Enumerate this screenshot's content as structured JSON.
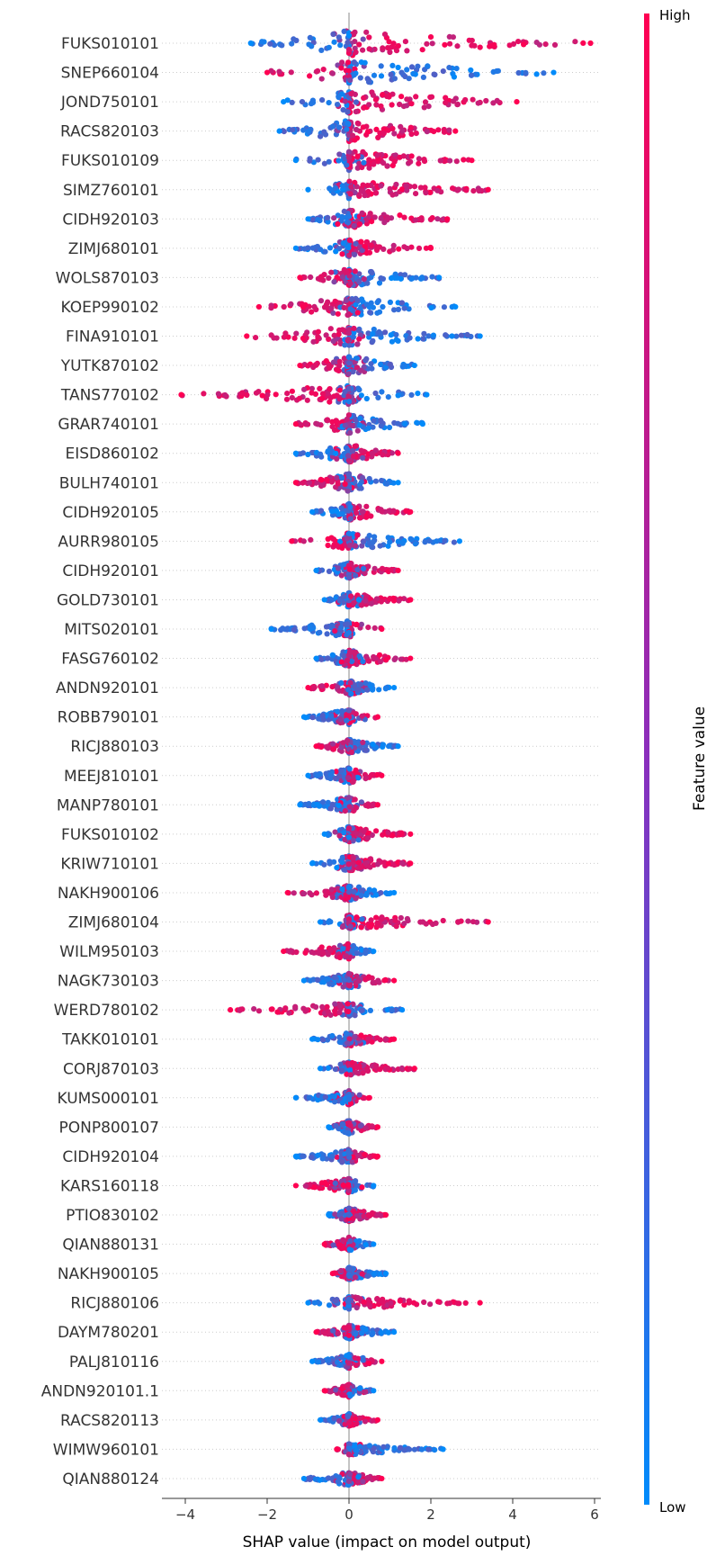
{
  "chart_data": {
    "type": "scatter",
    "subtype": "shap-beeswarm",
    "xlabel": "SHAP value (impact on model output)",
    "xticks": [
      -4,
      -2,
      0,
      2,
      4,
      6
    ],
    "xlim": [
      -4.6,
      6.4
    ],
    "colorbar": {
      "label": "Feature value",
      "high": "High",
      "low": "Low",
      "high_color": "#ff0052",
      "low_color": "#008bfb"
    },
    "zero_line": true,
    "features": [
      {
        "name": "FUKS010101",
        "min": -2.4,
        "max": 5.9,
        "high_side": "right",
        "width": 1.0
      },
      {
        "name": "SNEP660104",
        "min": -2.0,
        "max": 5.0,
        "high_side": "left",
        "width": 0.9
      },
      {
        "name": "JOND750101",
        "min": -1.6,
        "max": 4.1,
        "high_side": "right",
        "width": 0.9
      },
      {
        "name": "RACS820103",
        "min": -1.7,
        "max": 2.6,
        "high_side": "right",
        "width": 0.85
      },
      {
        "name": "FUKS010109",
        "min": -1.3,
        "max": 3.0,
        "high_side": "right",
        "width": 0.8
      },
      {
        "name": "SIMZ760101",
        "min": -1.0,
        "max": 3.4,
        "high_side": "right",
        "width": 0.7
      },
      {
        "name": "CIDH920103",
        "min": -1.0,
        "max": 2.4,
        "high_side": "right",
        "width": 0.7
      },
      {
        "name": "ZIMJ680101",
        "min": -1.3,
        "max": 2.0,
        "high_side": "right",
        "width": 0.65
      },
      {
        "name": "WOLS870103",
        "min": -1.2,
        "max": 2.2,
        "high_side": "left",
        "width": 0.7
      },
      {
        "name": "KOEP990102",
        "min": -2.2,
        "max": 2.6,
        "high_side": "left",
        "width": 0.75
      },
      {
        "name": "FINA910101",
        "min": -2.5,
        "max": 3.2,
        "high_side": "left",
        "width": 0.75
      },
      {
        "name": "YUTK870102",
        "min": -1.2,
        "max": 1.6,
        "high_side": "left",
        "width": 0.75
      },
      {
        "name": "TANS770102",
        "min": -4.1,
        "max": 1.9,
        "high_side": "left",
        "width": 0.75
      },
      {
        "name": "GRAR740101",
        "min": -1.3,
        "max": 1.8,
        "high_side": "left",
        "width": 0.75
      },
      {
        "name": "EISD860102",
        "min": -1.3,
        "max": 1.2,
        "high_side": "right",
        "width": 0.7
      },
      {
        "name": "BULH740101",
        "min": -1.3,
        "max": 1.2,
        "high_side": "left",
        "width": 0.7
      },
      {
        "name": "CIDH920105",
        "min": -0.9,
        "max": 1.5,
        "high_side": "right",
        "width": 0.65
      },
      {
        "name": "AURR980105",
        "min": -1.4,
        "max": 2.7,
        "high_side": "left",
        "width": 0.65
      },
      {
        "name": "CIDH920101",
        "min": -0.8,
        "max": 1.2,
        "high_side": "right",
        "width": 0.6
      },
      {
        "name": "GOLD730101",
        "min": -0.6,
        "max": 1.5,
        "high_side": "right",
        "width": 0.6
      },
      {
        "name": "MITS020101",
        "min": -1.9,
        "max": 0.8,
        "high_side": "right",
        "width": 0.65
      },
      {
        "name": "FASG760102",
        "min": -0.8,
        "max": 1.5,
        "high_side": "right",
        "width": 0.65
      },
      {
        "name": "ANDN920101",
        "min": -1.0,
        "max": 1.1,
        "high_side": "left",
        "width": 0.6
      },
      {
        "name": "ROBB790101",
        "min": -1.1,
        "max": 0.7,
        "high_side": "right",
        "width": 0.6
      },
      {
        "name": "RICJ880103",
        "min": -0.8,
        "max": 1.2,
        "high_side": "left",
        "width": 0.55
      },
      {
        "name": "MEEJ810101",
        "min": -1.0,
        "max": 0.8,
        "high_side": "right",
        "width": 0.6
      },
      {
        "name": "MANP780101",
        "min": -1.2,
        "max": 0.7,
        "high_side": "right",
        "width": 0.6
      },
      {
        "name": "FUKS010102",
        "min": -0.6,
        "max": 1.5,
        "high_side": "right",
        "width": 0.6
      },
      {
        "name": "KRIW710101",
        "min": -0.9,
        "max": 1.5,
        "high_side": "right",
        "width": 0.6
      },
      {
        "name": "NAKH900106",
        "min": -1.5,
        "max": 1.1,
        "high_side": "left",
        "width": 0.6
      },
      {
        "name": "ZIMJ680104",
        "min": -0.7,
        "max": 3.4,
        "high_side": "right",
        "width": 0.55
      },
      {
        "name": "WILM950103",
        "min": -1.6,
        "max": 0.6,
        "high_side": "left",
        "width": 0.6
      },
      {
        "name": "NAGK730103",
        "min": -1.1,
        "max": 1.1,
        "high_side": "right",
        "width": 0.6
      },
      {
        "name": "WERD780102",
        "min": -2.9,
        "max": 1.3,
        "high_side": "left",
        "width": 0.55
      },
      {
        "name": "TAKK010101",
        "min": -0.9,
        "max": 1.1,
        "high_side": "right",
        "width": 0.55
      },
      {
        "name": "CORJ870103",
        "min": -0.7,
        "max": 1.6,
        "high_side": "right",
        "width": 0.55
      },
      {
        "name": "KUMS000101",
        "min": -1.3,
        "max": 0.5,
        "high_side": "right",
        "width": 0.55
      },
      {
        "name": "PONP800107",
        "min": -0.5,
        "max": 0.7,
        "high_side": "right",
        "width": 0.55
      },
      {
        "name": "CIDH920104",
        "min": -1.3,
        "max": 0.7,
        "high_side": "right",
        "width": 0.55
      },
      {
        "name": "KARS160118",
        "min": -1.3,
        "max": 0.6,
        "high_side": "left",
        "width": 0.55
      },
      {
        "name": "PTIO830102",
        "min": -0.5,
        "max": 0.9,
        "high_side": "right",
        "width": 0.55
      },
      {
        "name": "QIAN880131",
        "min": -0.6,
        "max": 0.6,
        "high_side": "left",
        "width": 0.55
      },
      {
        "name": "NAKH900105",
        "min": -0.4,
        "max": 0.9,
        "high_side": "left",
        "width": 0.5
      },
      {
        "name": "RICJ880106",
        "min": -1.0,
        "max": 3.2,
        "high_side": "right",
        "width": 0.5
      },
      {
        "name": "DAYM780201",
        "min": -0.8,
        "max": 1.1,
        "high_side": "left",
        "width": 0.55
      },
      {
        "name": "PALJ810116",
        "min": -0.9,
        "max": 0.8,
        "high_side": "right",
        "width": 0.55
      },
      {
        "name": "ANDN920101.1",
        "min": -0.6,
        "max": 0.6,
        "high_side": "left",
        "width": 0.5
      },
      {
        "name": "RACS820113",
        "min": -0.7,
        "max": 0.7,
        "high_side": "right",
        "width": 0.5
      },
      {
        "name": "WIMW960101",
        "min": -0.3,
        "max": 2.3,
        "high_side": "left",
        "width": 0.45
      },
      {
        "name": "QIAN880124",
        "min": -1.1,
        "max": 0.8,
        "high_side": "right",
        "width": 0.55
      }
    ]
  }
}
